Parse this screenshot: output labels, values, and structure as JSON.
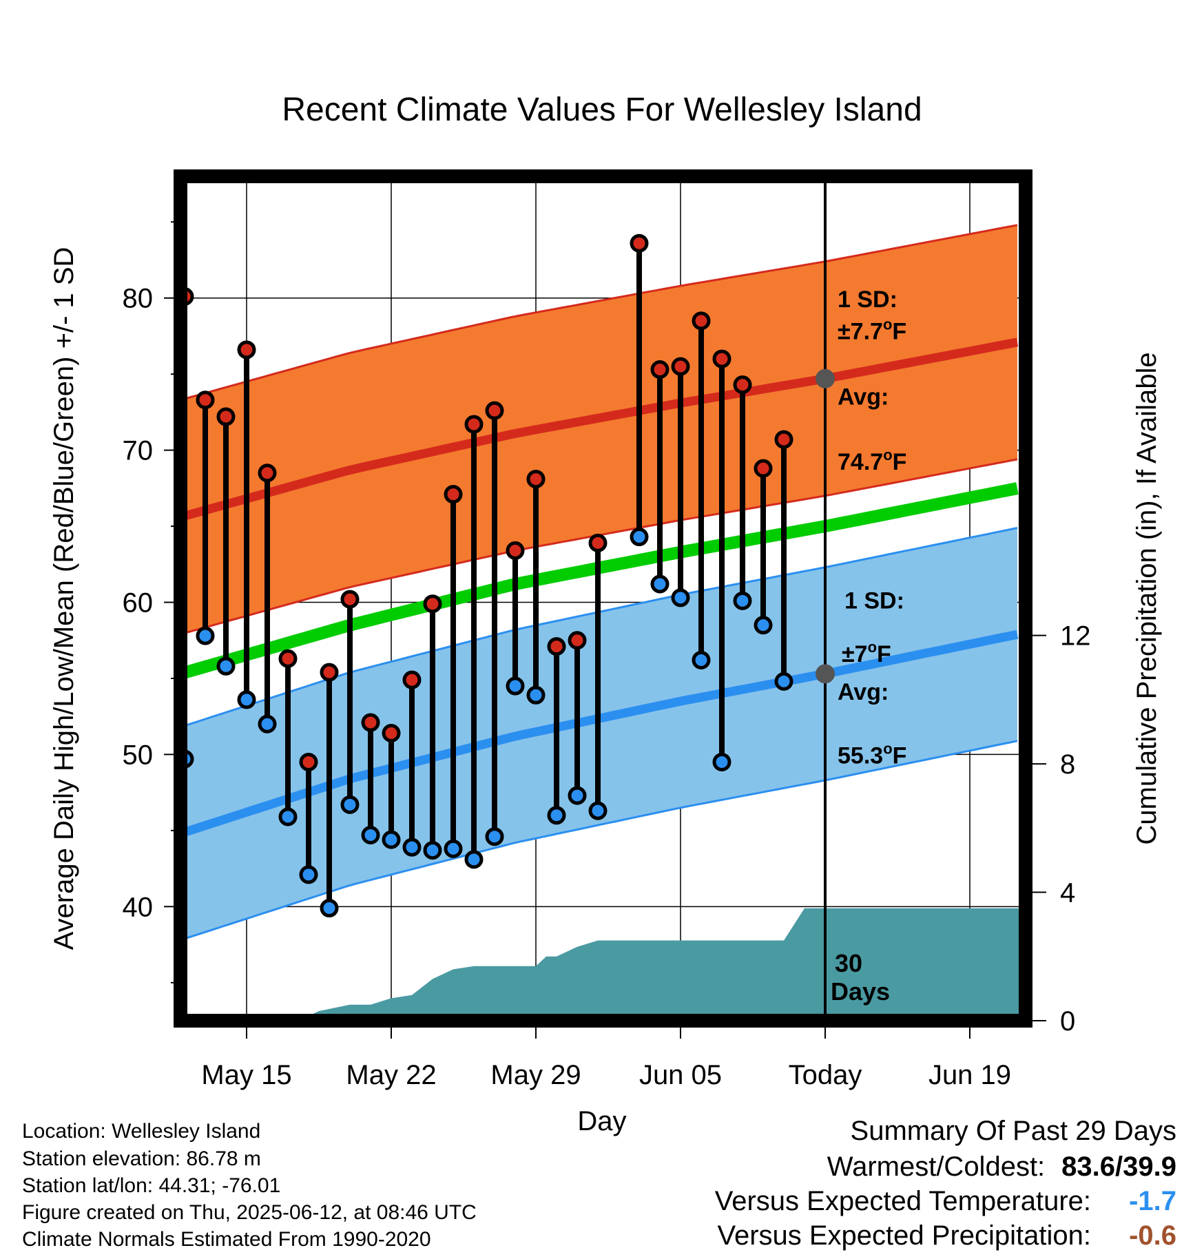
{
  "colors": {
    "high_band": "#f47a30",
    "high_band_edge": "#d42a1c",
    "avg_high_line": "#d42a1c",
    "low_band": "#86c3ea",
    "low_band_edge": "#2b8ff0",
    "avg_low_line": "#2b8ff0",
    "mean_line": "#00cc00",
    "precip_fill": "#4a9aa2",
    "high_marker": "#d42a1c",
    "low_marker": "#2b8ff0",
    "versus_temp": "#2b8ff0",
    "versus_precip": "#a0522d"
  },
  "chart_data": {
    "type": "line",
    "title": "Recent Climate Values For Wellesley Island",
    "xlabel": "Day",
    "ylabel": "Average Daily High/Low/Mean (Red/Blue/Green) +/- 1 SD",
    "y2label": "Cumulative Precipitation (in), If Available",
    "x_tick_labels": [
      "May 15",
      "May 22",
      "May 29",
      "Jun 05",
      "Today",
      "Jun 19"
    ],
    "x_tick_days": [
      15,
      22,
      29,
      36,
      43,
      50
    ],
    "xlim_days": [
      11.8,
      52.7
    ],
    "ylim": [
      32.5,
      88.0
    ],
    "y_ticks": [
      40,
      50,
      60,
      70,
      80
    ],
    "y2lim": [
      0,
      26.3
    ],
    "y2_ticks": [
      0,
      4,
      8,
      12
    ],
    "grid": true,
    "days": [
      12,
      13,
      14,
      15,
      16,
      17,
      18,
      19,
      20,
      21,
      22,
      23,
      24,
      25,
      26,
      27,
      28,
      29,
      30,
      31,
      32,
      33,
      34,
      35,
      36,
      37,
      38,
      39,
      40,
      41,
      42
    ],
    "daily_high": [
      80.1,
      73.3,
      72.2,
      76.6,
      68.5,
      56.3,
      49.5,
      55.4,
      60.2,
      52.1,
      51.4,
      54.9,
      59.9,
      67.1,
      71.7,
      72.6,
      63.4,
      68.1,
      57.1,
      57.5,
      63.9,
      null,
      83.6,
      75.3,
      75.5,
      78.5,
      76.0,
      74.3,
      68.8,
      70.7,
      null
    ],
    "daily_low": [
      49.7,
      57.8,
      55.8,
      53.6,
      52.0,
      45.9,
      42.1,
      39.9,
      46.7,
      44.7,
      44.4,
      43.9,
      43.7,
      43.8,
      43.1,
      44.6,
      54.5,
      53.9,
      46.0,
      47.3,
      46.3,
      null,
      64.3,
      61.2,
      60.3,
      56.2,
      49.5,
      60.1,
      58.5,
      54.8,
      null
    ],
    "avg_high": {
      "days": [
        11.8,
        20,
        28,
        36,
        43,
        52.7
      ],
      "values": [
        65.6,
        68.7,
        71.1,
        73.1,
        74.7,
        77.2
      ]
    },
    "avg_low": {
      "days": [
        11.8,
        20,
        28,
        36,
        43,
        52.7
      ],
      "values": [
        44.8,
        48.4,
        51.2,
        53.5,
        55.3,
        58.0
      ]
    },
    "mean": {
      "days": [
        11.8,
        20,
        28,
        36,
        43,
        52.7
      ],
      "values": [
        55.3,
        58.5,
        61.2,
        63.3,
        65.0,
        67.6
      ]
    },
    "high_sd": 7.7,
    "low_sd": 7.0,
    "precip_cumulative": {
      "days": [
        11.8,
        17.5,
        18.5,
        20,
        21,
        22,
        23,
        24,
        25,
        26,
        27,
        28,
        29,
        29.5,
        30,
        31,
        32,
        36,
        40,
        41,
        42,
        43,
        52.7
      ],
      "values": [
        0,
        0,
        0.3,
        0.5,
        0.5,
        0.7,
        0.8,
        1.3,
        1.6,
        1.7,
        1.7,
        1.7,
        1.7,
        2.0,
        2.0,
        2.3,
        2.5,
        2.5,
        2.5,
        2.5,
        3.5,
        3.5,
        3.5
      ]
    },
    "annotations": {
      "high_sd_label": "1 SD:",
      "high_sd_value": "±7.7",
      "high_avg_label": "Avg:",
      "high_avg_value": "74.7",
      "low_sd_label": "1 SD:",
      "low_sd_value": "±7",
      "low_avg_label": "Avg:",
      "low_avg_value": "55.3",
      "degree_unit": "o",
      "unit_letter": "F",
      "period_line1": "30",
      "period_line2": "Days"
    }
  },
  "info": {
    "location": "Location: Wellesley Island",
    "elevation": "Station elevation: 86.78 m",
    "latlon": "Station lat/lon: 44.31; -76.01",
    "created": "Figure created on Thu, 2025-06-12, at 08:46 UTC",
    "normals": "Climate Normals Estimated From 1990-2020"
  },
  "summary": {
    "title": "Summary Of Past 29 Days",
    "warmest_label": "Warmest/Coldest:",
    "warmest_value": "83.6/39.9",
    "temp_label": "Versus Expected Temperature:",
    "temp_value": "-1.7",
    "precip_label": "Versus Expected Precipitation:",
    "precip_value": "-0.6"
  }
}
